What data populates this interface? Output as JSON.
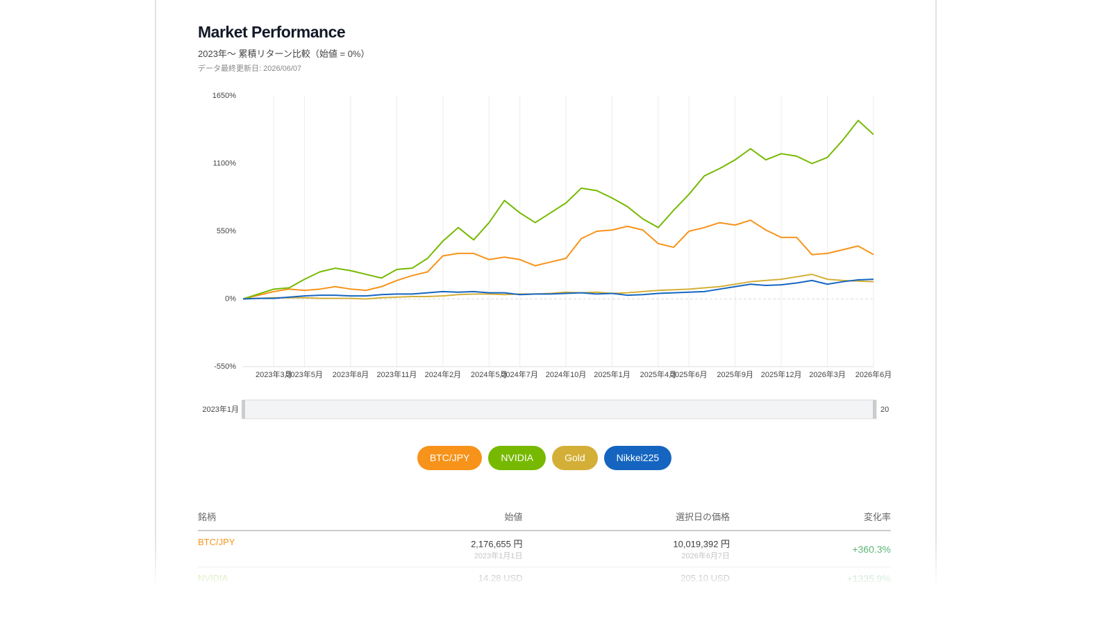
{
  "header": {
    "title": "Market Performance",
    "subtitle": "2023年〜 累積リターン比較（始値 = 0%）",
    "updated": "データ最終更新日: 2026/06/07"
  },
  "chart_data": {
    "type": "line",
    "x": [
      "2023-01",
      "2023-02",
      "2023-03",
      "2023-04",
      "2023-05",
      "2023-06",
      "2023-07",
      "2023-08",
      "2023-09",
      "2023-10",
      "2023-11",
      "2023-12",
      "2024-01",
      "2024-02",
      "2024-03",
      "2024-04",
      "2024-05",
      "2024-06",
      "2024-07",
      "2024-08",
      "2024-09",
      "2024-10",
      "2024-11",
      "2024-12",
      "2025-01",
      "2025-02",
      "2025-03",
      "2025-04",
      "2025-05",
      "2025-06",
      "2025-07",
      "2025-08",
      "2025-09",
      "2025-10",
      "2025-11",
      "2025-12",
      "2026-01",
      "2026-02",
      "2026-03",
      "2026-04",
      "2026-05",
      "2026-06"
    ],
    "series": [
      {
        "name": "BTC/JPY",
        "color": "#f7931a",
        "values": [
          0,
          30,
          60,
          80,
          70,
          80,
          100,
          80,
          70,
          100,
          150,
          190,
          220,
          350,
          370,
          370,
          320,
          340,
          320,
          270,
          300,
          330,
          490,
          550,
          560,
          590,
          560,
          450,
          420,
          550,
          580,
          620,
          600,
          640,
          560,
          500,
          500,
          360,
          370,
          400,
          430,
          360.3
        ]
      },
      {
        "name": "NVIDIA",
        "color": "#76b900",
        "values": [
          0,
          40,
          80,
          90,
          160,
          220,
          250,
          230,
          200,
          170,
          240,
          250,
          330,
          470,
          580,
          480,
          620,
          800,
          700,
          620,
          700,
          780,
          900,
          880,
          820,
          750,
          650,
          580,
          720,
          850,
          1000,
          1060,
          1130,
          1220,
          1130,
          1180,
          1160,
          1100,
          1150,
          1290,
          1450,
          1335.9
        ]
      },
      {
        "name": "Gold",
        "color": "#d4af37",
        "values": [
          0,
          5,
          10,
          10,
          10,
          5,
          5,
          5,
          0,
          10,
          15,
          20,
          20,
          25,
          35,
          40,
          40,
          35,
          40,
          40,
          45,
          55,
          50,
          55,
          45,
          50,
          60,
          70,
          75,
          80,
          90,
          100,
          120,
          140,
          150,
          160,
          180,
          200,
          160,
          150,
          145,
          140
        ]
      },
      {
        "name": "Nikkei225",
        "color": "#1565c0",
        "values": [
          0,
          5,
          5,
          15,
          25,
          30,
          30,
          25,
          25,
          35,
          40,
          40,
          50,
          60,
          55,
          60,
          50,
          50,
          35,
          40,
          40,
          45,
          50,
          40,
          45,
          30,
          35,
          45,
          50,
          55,
          60,
          80,
          100,
          120,
          110,
          115,
          130,
          150,
          120,
          140,
          155,
          160
        ]
      }
    ],
    "ylim": [
      -550,
      1650
    ],
    "yticks": [
      {
        "value": -550,
        "label": "-550%"
      },
      {
        "value": 0,
        "label": "0%"
      },
      {
        "value": 550,
        "label": "550%"
      },
      {
        "value": 1100,
        "label": "1100%"
      },
      {
        "value": 1650,
        "label": "1650%"
      }
    ],
    "xticks": [
      {
        "value": "2023-03",
        "label": "2023年3月"
      },
      {
        "value": "2023-05",
        "label": "2023年5月"
      },
      {
        "value": "2023-08",
        "label": "2023年8月"
      },
      {
        "value": "2023-11",
        "label": "2023年11月"
      },
      {
        "value": "2024-02",
        "label": "2024年2月"
      },
      {
        "value": "2024-05",
        "label": "2024年5月"
      },
      {
        "value": "2024-07",
        "label": "2024年7月"
      },
      {
        "value": "2024-10",
        "label": "2024年10月"
      },
      {
        "value": "2025-01",
        "label": "2025年1月"
      },
      {
        "value": "2025-04",
        "label": "2025年4月"
      },
      {
        "value": "2025-06",
        "label": "2025年6月"
      },
      {
        "value": "2025-09",
        "label": "2025年9月"
      },
      {
        "value": "2025-12",
        "label": "2025年12月"
      },
      {
        "value": "2026-03",
        "label": "2026年3月"
      },
      {
        "value": "2026-06",
        "label": "2026年6月"
      }
    ],
    "grid": true,
    "slider": {
      "start": "2023年1月",
      "end": "20"
    }
  },
  "table": {
    "headers": [
      "銘柄",
      "始値",
      "選択日の価格",
      "変化率"
    ],
    "rows": [
      [
        "BTC/JPY",
        "2,176,655 円",
        "2023年1月1日",
        "10,019,392 円",
        "2026年6月7日",
        "+360.3%"
      ],
      [
        "NVIDIA",
        "14.28 USD",
        "",
        "205.10 USD",
        "",
        "+1335.9%"
      ]
    ]
  }
}
